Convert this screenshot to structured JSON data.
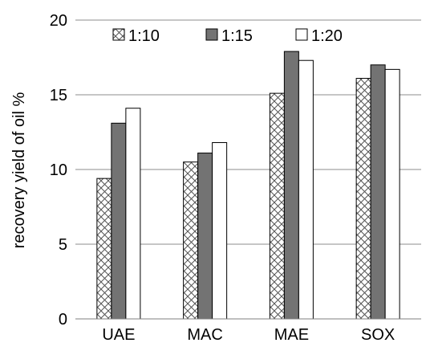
{
  "chart_data": {
    "type": "bar",
    "title": "",
    "xlabel": "",
    "ylabel": "recovery yield of oil %",
    "ylim": [
      0,
      20
    ],
    "yticks": [
      0,
      5,
      10,
      15,
      20
    ],
    "grid": true,
    "legend_position": "top",
    "categories": [
      "UAE",
      "MAC",
      "MAE",
      "SOX"
    ],
    "series": [
      {
        "name": "1:10",
        "pattern": "crosshatch",
        "color": "#ffffff",
        "values": [
          9.4,
          10.5,
          15.1,
          16.1
        ]
      },
      {
        "name": "1:15",
        "pattern": "solid",
        "color": "#737373",
        "values": [
          13.1,
          11.1,
          17.9,
          17.0
        ]
      },
      {
        "name": "1:20",
        "pattern": "solid",
        "color": "#ffffff",
        "values": [
          14.1,
          11.8,
          17.3,
          16.7
        ]
      }
    ]
  }
}
